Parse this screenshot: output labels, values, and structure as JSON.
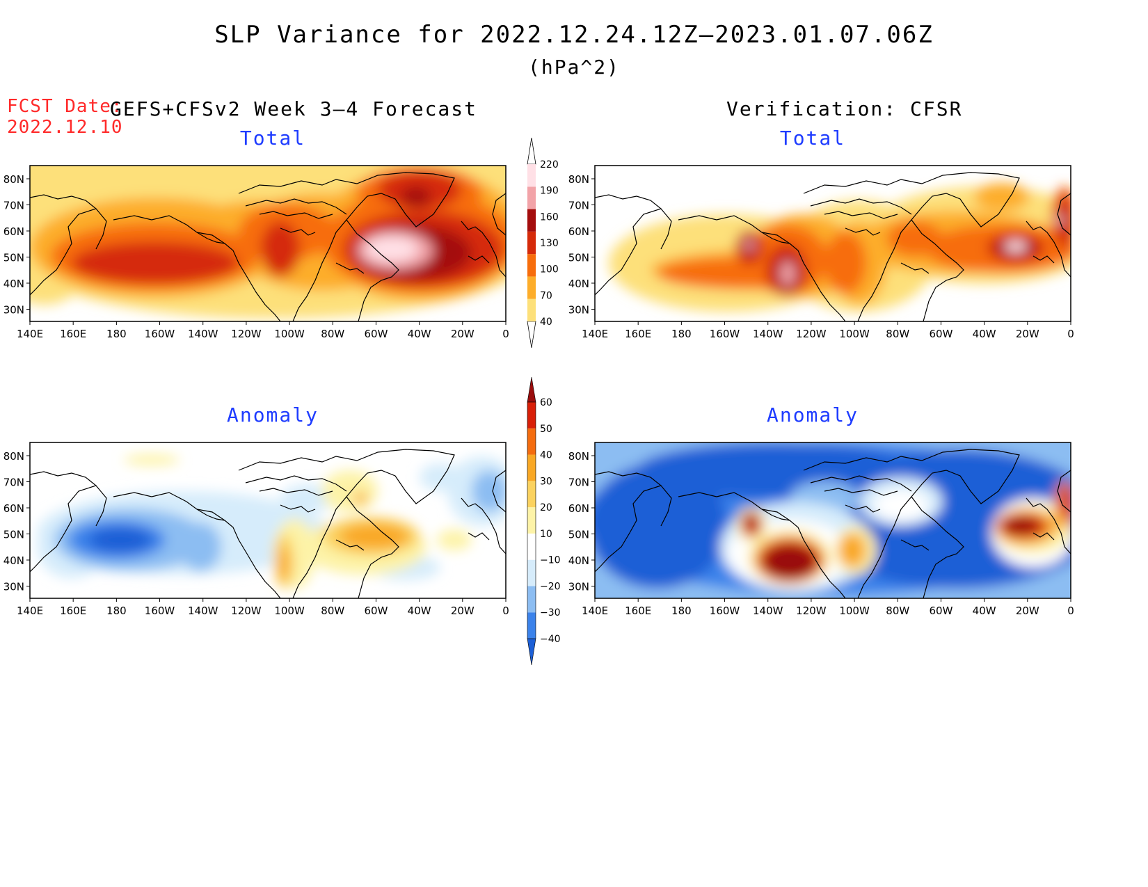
{
  "title": "SLP Variance for 2022.12.24.12Z–2023.01.07.06Z",
  "units": "(hPa^2)",
  "fcst_label": "FCST Date:",
  "fcst_date": "2022.12.10",
  "left_header": "GEFS+CFSv2 Week 3–4 Forecast",
  "right_header": "Verification: CFSR",
  "panels": {
    "fc_total": {
      "subtitle": "Total"
    },
    "vf_total": {
      "subtitle": "Total"
    },
    "fc_anom": {
      "subtitle": "Anomaly"
    },
    "vf_anom": {
      "subtitle": "Anomaly"
    }
  },
  "axes": {
    "lat_labels": [
      "80N",
      "70N",
      "60N",
      "50N",
      "40N",
      "30N"
    ],
    "lon_labels": [
      "140E",
      "160E",
      "180",
      "160W",
      "140W",
      "120W",
      "100W",
      "80W",
      "60W",
      "40W",
      "20W",
      "0"
    ]
  },
  "colorbars": {
    "total": {
      "levels": [
        "40",
        "70",
        "100",
        "130",
        "160",
        "190",
        "220"
      ],
      "colors": [
        "#fde07a",
        "#fdad2a",
        "#f76d0c",
        "#d52a0a",
        "#a40d0d",
        "#f2a3a8",
        "#ffe0e6"
      ]
    },
    "anomaly": {
      "levels": [
        "−40",
        "−30",
        "−20",
        "−10",
        "10",
        "20",
        "30",
        "40",
        "50",
        "60"
      ],
      "colors": [
        "#1c5fd6",
        "#3b82ea",
        "#8cbdf2",
        "#d6ecfb",
        "#ffffff",
        "#fdf3a7",
        "#fbd25f",
        "#f9a825",
        "#f46c0f",
        "#d81f08",
        "#9a0d0d"
      ]
    }
  },
  "chart_data": [
    {
      "type": "heatmap",
      "subtitle": "Total",
      "header": "GEFS+CFSv2 Week 3–4 Forecast",
      "units": "hPa^2",
      "xlim": [
        "140E",
        "0"
      ],
      "ylim": [
        "25N",
        "85N"
      ],
      "features": [
        {
          "region": "North Pacific 45N 175W",
          "value": 130
        },
        {
          "region": "North Atlantic 50N 55W",
          "value": 220
        },
        {
          "region": "Greenland Sea 73N 35W",
          "value": 160
        },
        {
          "region": "Gulf of Alaska / western Canada",
          "value": 100
        },
        {
          "region": "basin-wide background",
          "value": 70
        }
      ]
    },
    {
      "type": "heatmap",
      "subtitle": "Total",
      "header": "Verification: CFSR",
      "units": "hPa^2",
      "xlim": [
        "140E",
        "0"
      ],
      "ylim": [
        "25N",
        "85N"
      ],
      "features": [
        {
          "region": "NE Pacific 42N 130W",
          "value": 220
        },
        {
          "region": "Gulf of Alaska 55N 148W",
          "value": 190
        },
        {
          "region": "North Atlantic 53N 28W",
          "value": 220
        },
        {
          "region": "Irish Sea 60N 5W",
          "value": 190
        },
        {
          "region": "background",
          "value": 70
        }
      ]
    },
    {
      "type": "heatmap",
      "subtitle": "Anomaly",
      "header": "GEFS+CFSv2 Week 3–4 Forecast",
      "units": "hPa^2",
      "xlim": [
        "140E",
        "0"
      ],
      "ylim": [
        "25N",
        "85N"
      ],
      "features": [
        {
          "region": "North Pacific 47N 180",
          "value": -30
        },
        {
          "region": "NW Atlantic 50N 65W",
          "value": 40
        },
        {
          "region": "central US 42N 100W",
          "value": 30
        },
        {
          "region": "NE Pacific 45N 150W",
          "value": -20
        }
      ]
    },
    {
      "type": "heatmap",
      "subtitle": "Anomaly",
      "header": "Verification: CFSR",
      "units": "hPa^2",
      "xlim": [
        "140E",
        "0"
      ],
      "ylim": [
        "25N",
        "85N"
      ],
      "features": [
        {
          "region": "NE Pacific 42N 128W",
          "value": 60
        },
        {
          "region": "Gulf of Alaska 55N 148W",
          "value": 60
        },
        {
          "region": "North Atlantic 53N 25W",
          "value": 60
        },
        {
          "region": "basin-wide",
          "value": -40
        }
      ]
    }
  ]
}
